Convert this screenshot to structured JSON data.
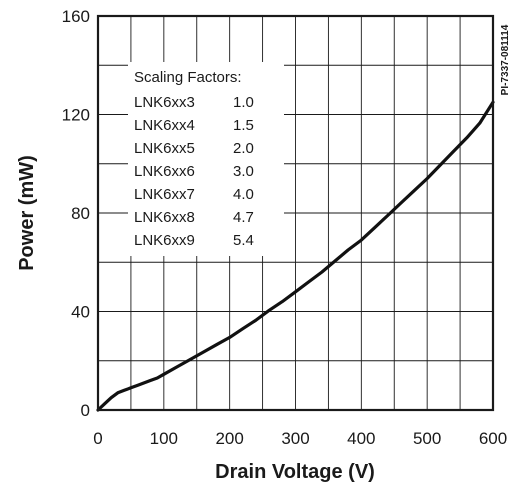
{
  "chart_data": {
    "type": "line",
    "xlabel": "Drain Voltage (V)",
    "ylabel": "Power (mW)",
    "xlim": [
      0,
      600
    ],
    "ylim": [
      0,
      160
    ],
    "x_ticks": [
      "0",
      "100",
      "200",
      "300",
      "400",
      "500",
      "600"
    ],
    "y_ticks": [
      "0",
      "40",
      "80",
      "120",
      "160"
    ],
    "grid": true,
    "series": [
      {
        "x": [
          0,
          10,
          20,
          30,
          40,
          50,
          60,
          70,
          80,
          90,
          100,
          120,
          140,
          160,
          180,
          200,
          220,
          240,
          260,
          280,
          300,
          320,
          340,
          360,
          380,
          400,
          420,
          440,
          460,
          480,
          500,
          520,
          540,
          560,
          580,
          600
        ],
        "y": [
          0,
          2.5,
          5,
          7,
          8,
          9,
          10,
          11,
          12,
          13,
          14.5,
          17.5,
          20.5,
          23.5,
          26.5,
          29.5,
          33,
          36.5,
          40.5,
          44,
          48,
          52,
          56,
          60.5,
          65,
          69,
          74,
          79,
          84,
          89,
          94,
          99.5,
          105,
          110.5,
          116.5,
          125
        ]
      }
    ],
    "legend": {
      "placement": "upper-left",
      "title": "Scaling Factors:",
      "entries": [
        {
          "name": "LNK6xx3",
          "value": "1.0"
        },
        {
          "name": "LNK6xx4",
          "value": "1.5"
        },
        {
          "name": "LNK6xx5",
          "value": "2.0"
        },
        {
          "name": "LNK6xx6",
          "value": "3.0"
        },
        {
          "name": "LNK6xx7",
          "value": "4.0"
        },
        {
          "name": "LNK6xx8",
          "value": "4.7"
        },
        {
          "name": "LNK6xx9",
          "value": "5.4"
        }
      ]
    },
    "annotation": "PI-7337-081114"
  }
}
